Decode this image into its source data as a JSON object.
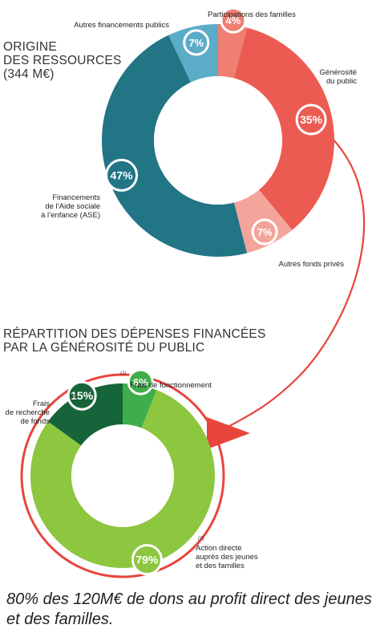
{
  "chart_data": [
    {
      "type": "pie",
      "variant": "donut",
      "title_lines": [
        "ORIGINE",
        "DES RESSOURCES",
        "(344 M€)"
      ],
      "slices": [
        {
          "label": "Participations des familles",
          "value": 4,
          "pct_label": "4%",
          "color": "#f07f71"
        },
        {
          "label": "Générosité du public",
          "value": 35,
          "pct_label": "35%",
          "color": "#ec5b52"
        },
        {
          "label": "Autres fonds privés",
          "value": 7,
          "pct_label": "7%",
          "color": "#f4a59b"
        },
        {
          "label": "Financements de l'Aide sociale à l'enfance (ASE)",
          "value": 47,
          "pct_label": "47%",
          "color": "#217585"
        },
        {
          "label": "Autres financements publics",
          "value": 7,
          "pct_label": "7%",
          "color": "#5bacc6"
        }
      ]
    },
    {
      "type": "pie",
      "variant": "donut",
      "title_lines": [
        "RÉPARTITION DES DÉPENSES FINANCÉES",
        "PAR LA GÉNÉROSITÉ DU PUBLIC"
      ],
      "slices": [
        {
          "label": "Frais de fonctionnement",
          "value": 6,
          "pct_label": "6%",
          "color": "#3fad4a",
          "note": "(2)"
        },
        {
          "label": "Action directe auprès des jeunes et des familles",
          "value": 79,
          "pct_label": "79%",
          "color": "#8dc63f",
          "note": "(2)"
        },
        {
          "label": "Frais de recherche de fonds",
          "value": 15,
          "pct_label": "15%",
          "color": "#16643a",
          "note": "(2)"
        }
      ]
    }
  ],
  "caption": "80% des 120M€ de dons au profit direct des jeunes et des familles.",
  "connector_color": "#e8453c"
}
